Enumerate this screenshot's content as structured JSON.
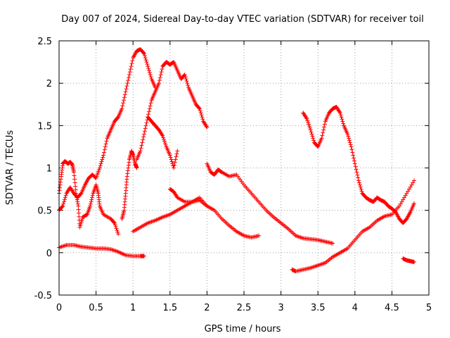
{
  "chart_data": {
    "type": "scatter",
    "title": "Day 007 of 2024, Sidereal Day-to-day VTEC variation (SDTVAR) for receiver toil",
    "xlabel": "GPS time / hours",
    "ylabel": "SDTVAR / TECUs",
    "xlim": [
      0,
      5
    ],
    "ylim": [
      -0.5,
      2.5
    ],
    "xticks": [
      0,
      0.5,
      1,
      1.5,
      2,
      2.5,
      3,
      3.5,
      4,
      4.5,
      5
    ],
    "xtick_labels": [
      "0",
      "0.5",
      "1",
      "1.5",
      "2",
      "2.5",
      "3",
      "3.5",
      "4",
      "4.5",
      "5"
    ],
    "yticks": [
      -0.5,
      0,
      0.5,
      1,
      1.5,
      2,
      2.5
    ],
    "ytick_labels": [
      "-0.5",
      "0",
      "0.5",
      "1",
      "1.5",
      "2",
      "2.5"
    ],
    "grid": true,
    "marker": "+",
    "color": "#ff0000",
    "series": [
      {
        "points": [
          [
            0.0,
            0.06
          ],
          [
            0.1,
            0.09
          ],
          [
            0.2,
            0.09
          ],
          [
            0.3,
            0.07
          ],
          [
            0.4,
            0.06
          ],
          [
            0.5,
            0.05
          ],
          [
            0.6,
            0.05
          ],
          [
            0.7,
            0.04
          ],
          [
            0.8,
            0.01
          ],
          [
            0.9,
            -0.03
          ],
          [
            1.0,
            -0.04
          ],
          [
            1.1,
            -0.04
          ],
          [
            1.15,
            -0.04
          ]
        ]
      },
      {
        "points": [
          [
            0.0,
            0.7
          ],
          [
            0.03,
            0.9
          ],
          [
            0.05,
            1.05
          ],
          [
            0.08,
            1.08
          ],
          [
            0.12,
            1.05
          ],
          [
            0.15,
            1.07
          ],
          [
            0.18,
            1.04
          ],
          [
            0.2,
            0.95
          ],
          [
            0.23,
            0.7
          ],
          [
            0.26,
            0.55
          ],
          [
            0.28,
            0.3
          ],
          [
            0.32,
            0.42
          ],
          [
            0.38,
            0.45
          ],
          [
            0.42,
            0.55
          ],
          [
            0.46,
            0.7
          ],
          [
            0.5,
            0.8
          ],
          [
            0.53,
            0.7
          ],
          [
            0.55,
            0.55
          ],
          [
            0.6,
            0.45
          ],
          [
            0.7,
            0.4
          ],
          [
            0.75,
            0.35
          ],
          [
            0.8,
            0.22
          ]
        ]
      },
      {
        "points": [
          [
            0.0,
            0.5
          ],
          [
            0.05,
            0.55
          ],
          [
            0.1,
            0.7
          ],
          [
            0.15,
            0.77
          ],
          [
            0.2,
            0.7
          ],
          [
            0.25,
            0.65
          ],
          [
            0.3,
            0.7
          ],
          [
            0.35,
            0.8
          ],
          [
            0.4,
            0.88
          ],
          [
            0.45,
            0.92
          ],
          [
            0.5,
            0.88
          ],
          [
            0.55,
            1.0
          ],
          [
            0.6,
            1.15
          ],
          [
            0.65,
            1.35
          ],
          [
            0.7,
            1.45
          ],
          [
            0.75,
            1.55
          ],
          [
            0.8,
            1.6
          ],
          [
            0.85,
            1.7
          ],
          [
            0.9,
            1.9
          ],
          [
            0.95,
            2.1
          ],
          [
            1.0,
            2.3
          ],
          [
            1.05,
            2.38
          ],
          [
            1.1,
            2.4
          ],
          [
            1.15,
            2.35
          ],
          [
            1.2,
            2.2
          ],
          [
            1.25,
            2.05
          ],
          [
            1.3,
            1.95
          ]
        ]
      },
      {
        "points": [
          [
            0.85,
            0.4
          ],
          [
            0.88,
            0.5
          ],
          [
            0.9,
            0.7
          ],
          [
            0.92,
            0.9
          ],
          [
            0.95,
            1.1
          ],
          [
            0.98,
            1.2
          ],
          [
            1.0,
            1.15
          ],
          [
            1.03,
            1.05
          ],
          [
            1.05,
            1.0
          ]
        ]
      },
      {
        "points": [
          [
            1.05,
            1.1
          ],
          [
            1.1,
            1.2
          ],
          [
            1.15,
            1.4
          ],
          [
            1.2,
            1.6
          ],
          [
            1.25,
            1.8
          ],
          [
            1.3,
            1.9
          ],
          [
            1.35,
            2.0
          ],
          [
            1.4,
            2.2
          ],
          [
            1.45,
            2.25
          ],
          [
            1.5,
            2.22
          ],
          [
            1.55,
            2.25
          ],
          [
            1.6,
            2.15
          ],
          [
            1.65,
            2.05
          ],
          [
            1.7,
            2.1
          ],
          [
            1.75,
            1.95
          ],
          [
            1.8,
            1.85
          ],
          [
            1.85,
            1.75
          ],
          [
            1.9,
            1.7
          ],
          [
            1.95,
            1.55
          ],
          [
            2.0,
            1.48
          ]
        ]
      },
      {
        "points": [
          [
            1.2,
            1.6
          ],
          [
            1.25,
            1.55
          ],
          [
            1.3,
            1.5
          ],
          [
            1.35,
            1.45
          ],
          [
            1.4,
            1.38
          ],
          [
            1.45,
            1.25
          ],
          [
            1.5,
            1.15
          ],
          [
            1.55,
            1.0
          ],
          [
            1.6,
            1.2
          ]
        ]
      },
      {
        "points": [
          [
            1.0,
            0.25
          ],
          [
            1.1,
            0.3
          ],
          [
            1.2,
            0.35
          ],
          [
            1.3,
            0.38
          ],
          [
            1.4,
            0.42
          ],
          [
            1.5,
            0.45
          ],
          [
            1.6,
            0.5
          ],
          [
            1.7,
            0.55
          ],
          [
            1.8,
            0.6
          ],
          [
            1.9,
            0.62
          ],
          [
            2.0,
            0.55
          ],
          [
            2.1,
            0.5
          ],
          [
            2.2,
            0.4
          ],
          [
            2.3,
            0.32
          ],
          [
            2.4,
            0.25
          ],
          [
            2.5,
            0.2
          ],
          [
            2.6,
            0.18
          ],
          [
            2.7,
            0.2
          ]
        ]
      },
      {
        "points": [
          [
            1.5,
            0.75
          ],
          [
            1.55,
            0.72
          ],
          [
            1.6,
            0.65
          ],
          [
            1.7,
            0.6
          ],
          [
            1.8,
            0.6
          ],
          [
            1.9,
            0.65
          ],
          [
            2.0,
            0.55
          ]
        ]
      },
      {
        "points": [
          [
            2.0,
            1.05
          ],
          [
            2.05,
            0.95
          ],
          [
            2.1,
            0.92
          ],
          [
            2.15,
            0.98
          ],
          [
            2.2,
            0.95
          ],
          [
            2.3,
            0.9
          ],
          [
            2.4,
            0.92
          ],
          [
            2.5,
            0.8
          ],
          [
            2.6,
            0.7
          ],
          [
            2.7,
            0.6
          ],
          [
            2.8,
            0.5
          ],
          [
            2.9,
            0.42
          ],
          [
            3.0,
            0.35
          ],
          [
            3.1,
            0.28
          ],
          [
            3.2,
            0.2
          ],
          [
            3.3,
            0.17
          ],
          [
            3.4,
            0.16
          ],
          [
            3.5,
            0.15
          ],
          [
            3.6,
            0.13
          ],
          [
            3.7,
            0.11
          ]
        ]
      },
      {
        "points": [
          [
            3.15,
            -0.2
          ],
          [
            3.2,
            -0.22
          ],
          [
            3.3,
            -0.2
          ],
          [
            3.4,
            -0.18
          ],
          [
            3.5,
            -0.15
          ],
          [
            3.6,
            -0.12
          ],
          [
            3.7,
            -0.05
          ],
          [
            3.8,
            0.0
          ],
          [
            3.9,
            0.05
          ],
          [
            4.0,
            0.15
          ],
          [
            4.1,
            0.25
          ],
          [
            4.2,
            0.3
          ],
          [
            4.3,
            0.38
          ],
          [
            4.4,
            0.43
          ],
          [
            4.5,
            0.45
          ],
          [
            4.6,
            0.55
          ],
          [
            4.7,
            0.7
          ],
          [
            4.8,
            0.85
          ]
        ]
      },
      {
        "points": [
          [
            3.3,
            1.65
          ],
          [
            3.35,
            1.58
          ],
          [
            3.4,
            1.45
          ],
          [
            3.45,
            1.3
          ],
          [
            3.5,
            1.25
          ],
          [
            3.55,
            1.35
          ],
          [
            3.6,
            1.55
          ],
          [
            3.65,
            1.65
          ],
          [
            3.7,
            1.7
          ],
          [
            3.75,
            1.72
          ],
          [
            3.8,
            1.65
          ],
          [
            3.85,
            1.5
          ],
          [
            3.9,
            1.4
          ],
          [
            3.95,
            1.25
          ],
          [
            4.0,
            1.05
          ],
          [
            4.05,
            0.85
          ],
          [
            4.1,
            0.7
          ],
          [
            4.15,
            0.65
          ],
          [
            4.2,
            0.62
          ],
          [
            4.25,
            0.6
          ],
          [
            4.3,
            0.65
          ],
          [
            4.35,
            0.62
          ],
          [
            4.4,
            0.6
          ],
          [
            4.45,
            0.55
          ],
          [
            4.5,
            0.52
          ],
          [
            4.55,
            0.48
          ],
          [
            4.6,
            0.4
          ],
          [
            4.65,
            0.35
          ],
          [
            4.7,
            0.4
          ],
          [
            4.75,
            0.48
          ],
          [
            4.8,
            0.58
          ]
        ]
      },
      {
        "points": [
          [
            4.65,
            -0.07
          ],
          [
            4.7,
            -0.09
          ],
          [
            4.75,
            -0.1
          ],
          [
            4.8,
            -0.11
          ]
        ]
      }
    ]
  }
}
